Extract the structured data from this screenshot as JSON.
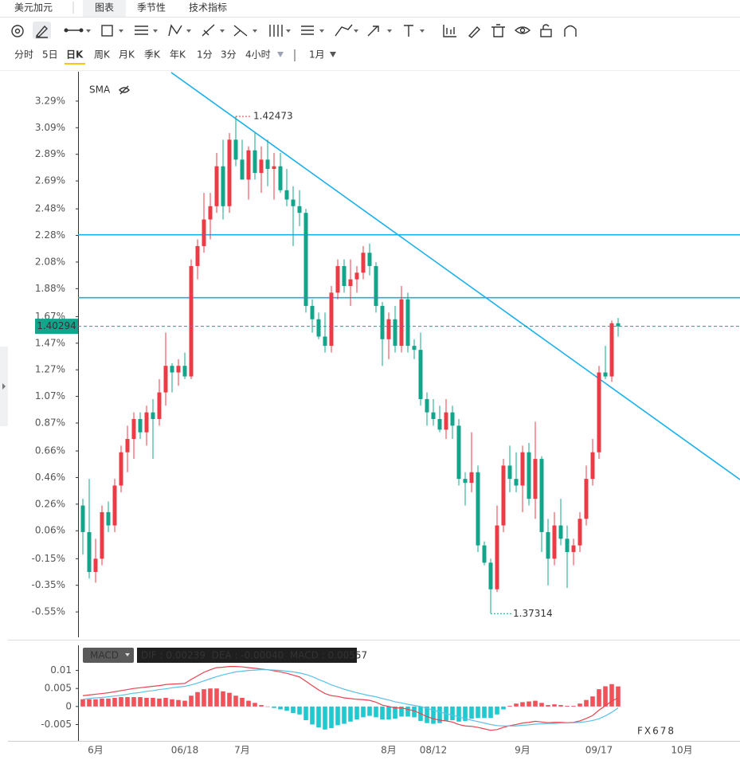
{
  "ui": {
    "tabs": [
      "美元加元",
      "图表",
      "季节性",
      "技术指标"
    ],
    "timeframes": [
      "分时",
      "5日",
      "日K",
      "周K",
      "月K",
      "季K",
      "年K",
      "1分",
      "3分",
      "4小时"
    ],
    "period": "1月",
    "watermark": "FX678"
  },
  "chart_data": [
    {
      "type": "candlestick",
      "overlay": "SMA",
      "up_color": "#eb3b46",
      "down_color": "#13a48c",
      "ylim": [
        -0.741,
        3.505
      ],
      "yticks": [
        {
          "value": 3.29,
          "label": "3.29%"
        },
        {
          "value": 3.09,
          "label": "3.09%"
        },
        {
          "value": 2.89,
          "label": "2.89%"
        },
        {
          "value": 2.69,
          "label": "2.69%"
        },
        {
          "value": 2.48,
          "label": "2.48%"
        },
        {
          "value": 2.28,
          "label": "2.28%"
        },
        {
          "value": 2.08,
          "label": "2.08%"
        },
        {
          "value": 1.88,
          "label": "1.88%"
        },
        {
          "value": 1.67,
          "label": "1.67%"
        },
        {
          "value": 1.47,
          "label": "1.47%"
        },
        {
          "value": 1.27,
          "label": "1.27%"
        },
        {
          "value": 1.07,
          "label": "1.07%"
        },
        {
          "value": 0.87,
          "label": "0.87%"
        },
        {
          "value": 0.66,
          "label": "0.66%"
        },
        {
          "value": 0.46,
          "label": "0.46%"
        },
        {
          "value": 0.26,
          "label": "0.26%"
        },
        {
          "value": 0.06,
          "label": "0.06%"
        },
        {
          "value": -0.15,
          "label": "-0.15%"
        },
        {
          "value": -0.35,
          "label": "-0.35%"
        },
        {
          "value": -0.55,
          "label": "-0.55%"
        }
      ],
      "hlines": [
        2.285,
        1.812
      ],
      "hline_color": "#1ab0ea",
      "high_label": "1.42473",
      "low_label": "1.37314",
      "last_label": "1.40294",
      "categories": [
        null,
        null,
        "6月",
        null,
        null,
        null,
        null,
        null,
        null,
        null,
        null,
        null,
        null,
        null,
        null,
        null,
        "06/18",
        null,
        null,
        null,
        null,
        null,
        null,
        null,
        null,
        "7月",
        null,
        null,
        null,
        null,
        null,
        null,
        null,
        null,
        null,
        null,
        null,
        null,
        null,
        null,
        null,
        null,
        null,
        null,
        null,
        null,
        null,
        null,
        "8月",
        null,
        null,
        null,
        null,
        null,
        null,
        "08/12",
        null,
        null,
        null,
        null,
        null,
        null,
        null,
        null,
        null,
        null,
        null,
        null,
        null,
        "9月",
        null,
        null,
        null,
        null,
        null,
        null,
        null,
        null,
        null,
        null,
        null,
        "09/17",
        null,
        null,
        null,
        null,
        null,
        null,
        null,
        null,
        null,
        null,
        null,
        null,
        "10月",
        null
      ],
      "open": [
        0.25,
        0.05,
        -0.25,
        -0.15,
        0.2,
        0.1,
        0.4,
        0.65,
        0.75,
        0.9,
        0.8,
        0.95,
        0.9,
        1.1,
        1.3,
        1.25,
        1.3,
        1.22,
        2.05,
        2.2,
        2.4,
        2.5,
        2.8,
        2.5,
        3.0,
        2.85,
        2.7,
        2.92,
        2.75,
        2.85,
        2.78,
        2.8,
        2.62,
        2.55,
        2.5,
        2.45,
        1.75,
        1.65,
        1.52,
        1.45,
        1.85,
        2.05,
        1.9,
        1.95,
        2.0,
        2.15,
        2.05,
        1.75,
        1.5,
        1.65,
        1.45,
        1.8,
        1.45,
        1.42,
        1.05,
        0.95,
        0.9,
        0.82,
        0.95,
        0.85,
        0.45,
        0.42,
        0.5,
        -0.05,
        -0.18,
        -0.38,
        0.1,
        0.55,
        0.45,
        0.4,
        0.65,
        0.3,
        0.6,
        0.05,
        -0.15,
        0.1,
        0.0,
        -0.1,
        -0.05,
        0.15,
        0.45,
        0.65,
        1.25,
        1.22,
        1.62,
        null,
        null,
        null,
        null,
        null,
        null,
        null,
        null,
        null,
        null,
        null
      ],
      "high": [
        0.3,
        0.45,
        0.0,
        0.25,
        0.28,
        0.45,
        0.7,
        0.85,
        0.95,
        0.95,
        1.0,
        1.05,
        1.2,
        1.55,
        1.32,
        1.35,
        1.4,
        2.1,
        2.25,
        2.6,
        2.6,
        2.9,
        3.0,
        3.05,
        3.175,
        3.0,
        2.95,
        3.05,
        2.95,
        3.0,
        2.9,
        2.9,
        2.78,
        2.65,
        2.62,
        2.48,
        1.8,
        1.7,
        1.7,
        1.9,
        2.1,
        2.1,
        2.1,
        2.05,
        2.2,
        2.22,
        2.08,
        1.78,
        1.7,
        1.75,
        1.9,
        1.85,
        1.5,
        1.55,
        1.1,
        1.05,
        1.0,
        1.05,
        1.0,
        0.9,
        0.5,
        0.8,
        0.55,
        -0.02,
        -0.15,
        0.25,
        0.6,
        0.7,
        0.65,
        0.7,
        0.72,
        0.88,
        0.62,
        0.15,
        0.2,
        0.3,
        0.1,
        0.0,
        0.2,
        0.55,
        0.75,
        1.3,
        1.45,
        1.64,
        1.66,
        null,
        null,
        null,
        null,
        null,
        null,
        null,
        null,
        null,
        null,
        null
      ],
      "low": [
        -0.12,
        -0.3,
        -0.33,
        -0.2,
        0.05,
        0.05,
        0.35,
        0.5,
        0.6,
        0.75,
        0.7,
        0.6,
        0.85,
        1.0,
        1.1,
        1.15,
        1.2,
        1.2,
        1.95,
        2.15,
        2.25,
        2.45,
        2.4,
        2.45,
        2.8,
        2.7,
        2.55,
        2.7,
        2.6,
        2.65,
        2.55,
        2.6,
        2.5,
        2.2,
        2.35,
        1.7,
        1.55,
        1.5,
        1.4,
        1.4,
        1.8,
        1.85,
        1.75,
        1.85,
        1.95,
        1.98,
        1.7,
        1.3,
        1.35,
        1.4,
        1.4,
        1.4,
        1.35,
        1.0,
        0.85,
        0.85,
        0.8,
        0.75,
        0.75,
        0.4,
        0.25,
        0.35,
        -0.1,
        -0.2,
        -0.563,
        -0.4,
        0.05,
        0.35,
        0.35,
        0.2,
        0.25,
        0.15,
        -0.1,
        -0.35,
        -0.2,
        -0.05,
        -0.37,
        -0.2,
        -0.1,
        0.1,
        0.4,
        0.6,
        1.2,
        1.18,
        1.52,
        null,
        null,
        null,
        null,
        null,
        null,
        null,
        null,
        null,
        null,
        null
      ],
      "close": [
        0.05,
        -0.25,
        -0.15,
        0.2,
        0.1,
        0.4,
        0.65,
        0.75,
        0.9,
        0.8,
        0.95,
        0.9,
        1.1,
        1.3,
        1.25,
        1.3,
        1.22,
        2.05,
        2.2,
        2.4,
        2.5,
        2.8,
        2.5,
        3.0,
        2.85,
        2.7,
        2.92,
        2.75,
        2.85,
        2.78,
        2.8,
        2.62,
        2.55,
        2.5,
        2.45,
        1.75,
        1.65,
        1.52,
        1.45,
        1.85,
        2.05,
        1.9,
        1.95,
        2.0,
        2.15,
        2.05,
        1.75,
        1.5,
        1.65,
        1.45,
        1.8,
        1.45,
        1.42,
        1.05,
        0.95,
        0.9,
        0.82,
        0.95,
        0.85,
        0.45,
        0.42,
        0.5,
        -0.05,
        -0.18,
        -0.38,
        0.1,
        0.55,
        0.45,
        0.4,
        0.65,
        0.3,
        0.6,
        0.05,
        -0.15,
        0.1,
        0.0,
        -0.1,
        -0.05,
        0.15,
        0.45,
        0.65,
        1.25,
        1.22,
        1.62,
        1.597,
        null,
        null,
        null,
        null,
        null,
        null,
        null,
        null,
        null,
        null,
        null
      ]
    },
    {
      "type": "macd",
      "indicator": "MACD",
      "legend": "DIF : 0.00239  DEA : -0.00040  MACD : 0.00557",
      "ylim": [
        -0.0091,
        0.0161
      ],
      "yticks": [
        0.01,
        0.005,
        0,
        -0.005
      ],
      "series": [
        {
          "color": "#e8434f",
          "values": [
            0.003,
            0.0032,
            0.0034,
            0.0036,
            0.0038,
            0.0041,
            0.0044,
            0.0047,
            0.005,
            0.0052,
            0.0054,
            0.0056,
            0.0058,
            0.0061,
            0.0062,
            0.0063,
            0.0064,
            0.0075,
            0.0085,
            0.0095,
            0.0102,
            0.0108,
            0.0109,
            0.0111,
            0.0111,
            0.011,
            0.0108,
            0.0106,
            0.0104,
            0.0102,
            0.0099,
            0.0096,
            0.0092,
            0.0087,
            0.0082,
            0.007,
            0.0058,
            0.0046,
            0.0036,
            0.003,
            0.0028,
            0.0024,
            0.0022,
            0.002,
            0.0019,
            0.0017,
            0.0012,
            0.0004,
            0.0,
            -0.0004,
            -0.0004,
            -0.0008,
            -0.0012,
            -0.002,
            -0.0028,
            -0.0034,
            -0.0038,
            -0.004,
            -0.0043,
            -0.005,
            -0.0054,
            -0.0055,
            -0.0058,
            -0.0062,
            -0.0066,
            -0.0064,
            -0.0058,
            -0.0053,
            -0.005,
            -0.0046,
            -0.0044,
            -0.0041,
            -0.0043,
            -0.0045,
            -0.0044,
            -0.0044,
            -0.0045,
            -0.0044,
            -0.004,
            -0.0033,
            -0.0025,
            -0.001,
            0.0002,
            0.0015,
            0.00239,
            null,
            null,
            null,
            null,
            null,
            null,
            null,
            null,
            null,
            null,
            null
          ]
        },
        {
          "color": "#5bc0e8",
          "values": [
            0.002,
            0.0022,
            0.0024,
            0.0025,
            0.0027,
            0.0029,
            0.0031,
            0.0034,
            0.0037,
            0.0039,
            0.0042,
            0.0044,
            0.0047,
            0.0049,
            0.0052,
            0.0054,
            0.0056,
            0.006,
            0.0065,
            0.0071,
            0.0077,
            0.0083,
            0.0088,
            0.0092,
            0.0096,
            0.0098,
            0.01,
            0.0101,
            0.0102,
            0.0102,
            0.0101,
            0.01,
            0.0098,
            0.0096,
            0.0093,
            0.0089,
            0.0083,
            0.0075,
            0.0068,
            0.006,
            0.0054,
            0.0048,
            0.0043,
            0.0038,
            0.0034,
            0.003,
            0.0027,
            0.0022,
            0.0018,
            0.0013,
            0.001,
            0.0006,
            0.0003,
            0.0,
            -0.0005,
            -0.001,
            -0.0015,
            -0.002,
            -0.0024,
            -0.0029,
            -0.0034,
            -0.0038,
            -0.0042,
            -0.0046,
            -0.005,
            -0.0053,
            -0.0054,
            -0.0054,
            -0.0054,
            -0.0052,
            -0.0051,
            -0.0049,
            -0.0048,
            -0.0047,
            -0.0047,
            -0.0046,
            -0.0046,
            -0.0045,
            -0.0044,
            -0.0042,
            -0.0039,
            -0.0034,
            -0.0026,
            -0.0016,
            -0.0004,
            null,
            null,
            null,
            null,
            null,
            null,
            null,
            null,
            null,
            null,
            null
          ]
        }
      ],
      "histogram": {
        "up_color": "#f0525a",
        "down_color": "#1fc9cf",
        "values": [
          0.002,
          0.002,
          0.002,
          0.0022,
          0.0022,
          0.0024,
          0.0026,
          0.0026,
          0.0026,
          0.0026,
          0.0024,
          0.0024,
          0.0022,
          0.0024,
          0.002,
          0.0018,
          0.0016,
          0.003,
          0.004,
          0.0048,
          0.005,
          0.005,
          0.0042,
          0.0038,
          0.003,
          0.0024,
          0.0016,
          0.001,
          0.0004,
          0.0,
          -0.0004,
          -0.0008,
          -0.0012,
          -0.0018,
          -0.0022,
          -0.0038,
          -0.005,
          -0.0058,
          -0.0064,
          -0.006,
          -0.0052,
          -0.0048,
          -0.0042,
          -0.0036,
          -0.003,
          -0.0026,
          -0.003,
          -0.0036,
          -0.0036,
          -0.0034,
          -0.0028,
          -0.0028,
          -0.003,
          -0.004,
          -0.0046,
          -0.0048,
          -0.0046,
          -0.004,
          -0.0038,
          -0.0042,
          -0.004,
          -0.0034,
          -0.0032,
          -0.0032,
          -0.0032,
          -0.0022,
          -0.0008,
          0.0002,
          0.0008,
          0.0012,
          0.0014,
          0.0016,
          0.001,
          0.0004,
          0.0006,
          0.0004,
          0.0002,
          0.0002,
          0.0008,
          0.0018,
          0.0028,
          0.0048,
          0.0056,
          0.0062,
          0.00557,
          null,
          null,
          null,
          null,
          null,
          null,
          null,
          null,
          null,
          null,
          null
        ]
      }
    }
  ]
}
